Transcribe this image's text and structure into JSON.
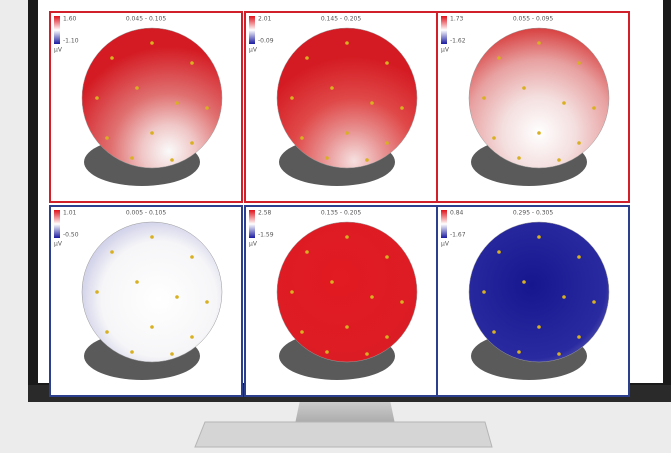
{
  "panels": [
    {
      "max": "1.60",
      "min": "-1.10",
      "unit": "µV",
      "time": "0.045 - 0.105"
    },
    {
      "max": "2.01",
      "min": "-0.09",
      "unit": "µV",
      "time": "0.145 - 0.205"
    },
    {
      "max": "1.73",
      "min": "-1.62",
      "unit": "µV",
      "time": "0.055 - 0.095"
    },
    {
      "max": "1.01",
      "min": "-0.50",
      "unit": "µV",
      "time": "0.005 - 0.105"
    },
    {
      "max": "2.58",
      "min": "-1.59",
      "unit": "µV",
      "time": "0.135 - 0.205"
    },
    {
      "max": "0.84",
      "min": "-1.67",
      "unit": "µV",
      "time": "0.295 - 0.305"
    }
  ]
}
